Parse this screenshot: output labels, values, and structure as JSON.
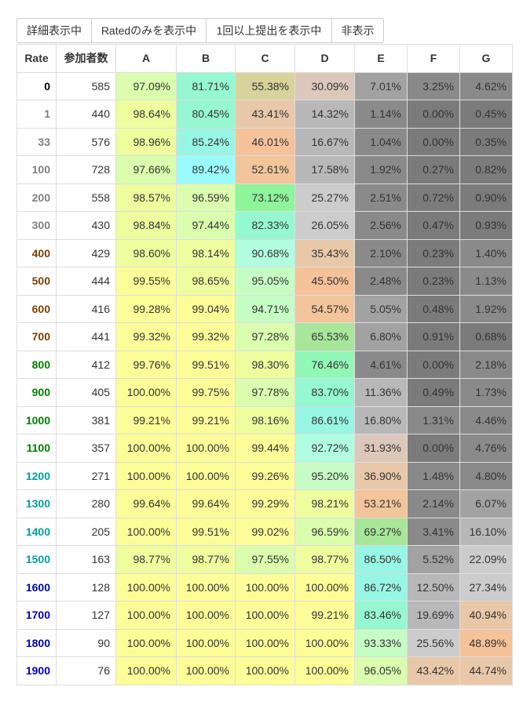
{
  "toolbar": {
    "buttons": [
      "詳細表示中",
      "Ratedのみを表示中",
      "1回以上提出を表示中",
      "非表示"
    ]
  },
  "table": {
    "headers": [
      "Rate",
      "参加者数",
      "A",
      "B",
      "C",
      "D",
      "E",
      "F",
      "G"
    ],
    "rows": [
      {
        "rate": "0",
        "count": "585",
        "values": [
          "97.09%",
          "81.71%",
          "55.38%",
          "30.09%",
          "7.01%",
          "3.25%",
          "4.62%"
        ]
      },
      {
        "rate": "1",
        "count": "440",
        "values": [
          "98.64%",
          "80.45%",
          "43.41%",
          "14.32%",
          "1.14%",
          "0.00%",
          "0.45%"
        ]
      },
      {
        "rate": "33",
        "count": "576",
        "values": [
          "98.96%",
          "85.24%",
          "46.01%",
          "16.67%",
          "1.04%",
          "0.00%",
          "0.35%"
        ]
      },
      {
        "rate": "100",
        "count": "728",
        "values": [
          "97.66%",
          "89.42%",
          "52.61%",
          "17.58%",
          "1.92%",
          "0.27%",
          "0.82%"
        ]
      },
      {
        "rate": "200",
        "count": "558",
        "values": [
          "98.57%",
          "96.59%",
          "73.12%",
          "25.27%",
          "2.51%",
          "0.72%",
          "0.90%"
        ]
      },
      {
        "rate": "300",
        "count": "430",
        "values": [
          "98.84%",
          "97.44%",
          "82.33%",
          "26.05%",
          "2.56%",
          "0.47%",
          "0.93%"
        ]
      },
      {
        "rate": "400",
        "count": "429",
        "values": [
          "98.60%",
          "98.14%",
          "90.68%",
          "35.43%",
          "2.10%",
          "0.23%",
          "1.40%"
        ]
      },
      {
        "rate": "500",
        "count": "444",
        "values": [
          "99.55%",
          "98.65%",
          "95.05%",
          "45.50%",
          "2.48%",
          "0.23%",
          "1.13%"
        ]
      },
      {
        "rate": "600",
        "count": "416",
        "values": [
          "99.28%",
          "99.04%",
          "94.71%",
          "54.57%",
          "5.05%",
          "0.48%",
          "1.92%"
        ]
      },
      {
        "rate": "700",
        "count": "441",
        "values": [
          "99.32%",
          "99.32%",
          "97.28%",
          "65.53%",
          "6.80%",
          "0.91%",
          "0.68%"
        ]
      },
      {
        "rate": "800",
        "count": "412",
        "values": [
          "99.76%",
          "99.51%",
          "98.30%",
          "76.46%",
          "4.61%",
          "0.00%",
          "2.18%"
        ]
      },
      {
        "rate": "900",
        "count": "405",
        "values": [
          "100.00%",
          "99.75%",
          "97.78%",
          "83.70%",
          "11.36%",
          "0.49%",
          "1.73%"
        ]
      },
      {
        "rate": "1000",
        "count": "381",
        "values": [
          "99.21%",
          "99.21%",
          "98.16%",
          "86.61%",
          "16.80%",
          "1.31%",
          "4.46%"
        ]
      },
      {
        "rate": "1100",
        "count": "357",
        "values": [
          "100.00%",
          "100.00%",
          "99.44%",
          "92.72%",
          "31.93%",
          "0.00%",
          "4.76%"
        ]
      },
      {
        "rate": "1200",
        "count": "271",
        "values": [
          "100.00%",
          "100.00%",
          "99.26%",
          "95.20%",
          "36.90%",
          "1.48%",
          "4.80%"
        ]
      },
      {
        "rate": "1300",
        "count": "280",
        "values": [
          "99.64%",
          "99.64%",
          "99.29%",
          "98.21%",
          "53.21%",
          "2.14%",
          "6.07%"
        ]
      },
      {
        "rate": "1400",
        "count": "205",
        "values": [
          "100.00%",
          "99.51%",
          "99.02%",
          "96.59%",
          "69.27%",
          "3.41%",
          "16.10%"
        ]
      },
      {
        "rate": "1500",
        "count": "163",
        "values": [
          "98.77%",
          "98.77%",
          "97.55%",
          "98.77%",
          "86.50%",
          "5.52%",
          "22.09%"
        ]
      },
      {
        "rate": "1600",
        "count": "128",
        "values": [
          "100.00%",
          "100.00%",
          "100.00%",
          "100.00%",
          "86.72%",
          "12.50%",
          "27.34%"
        ]
      },
      {
        "rate": "1700",
        "count": "127",
        "values": [
          "100.00%",
          "100.00%",
          "100.00%",
          "99.21%",
          "83.46%",
          "19.69%",
          "40.94%"
        ]
      },
      {
        "rate": "1800",
        "count": "90",
        "values": [
          "100.00%",
          "100.00%",
          "100.00%",
          "100.00%",
          "93.33%",
          "25.56%",
          "48.89%"
        ]
      },
      {
        "rate": "1900",
        "count": "76",
        "values": [
          "100.00%",
          "100.00%",
          "100.00%",
          "100.00%",
          "96.05%",
          "43.42%",
          "44.74%"
        ]
      }
    ]
  },
  "rate_colors": {
    "0": "#000000",
    "1": "#808080",
    "400": "#804000",
    "800": "#008000",
    "1200": "#00a0a0",
    "1600": "#0000c0"
  },
  "heat_colors": [
    {
      "min": 0,
      "color": "#7b7b7b"
    },
    {
      "min": 1,
      "color": "#8a8a8a"
    },
    {
      "min": 5,
      "color": "#a2a2a2"
    },
    {
      "min": 10,
      "color": "#b8b8b8"
    },
    {
      "min": 20,
      "color": "#cccccc"
    },
    {
      "min": 30,
      "color": "#dcc8bb"
    },
    {
      "min": 35,
      "color": "#e8c8a8"
    },
    {
      "min": 45,
      "color": "#f5c29a"
    },
    {
      "min": 50,
      "color": "#f2c59a"
    },
    {
      "min": 55,
      "color": "#d8d39a"
    },
    {
      "min": 65,
      "color": "#a8e69a"
    },
    {
      "min": 70,
      "color": "#8ef59a"
    },
    {
      "min": 75,
      "color": "#92f8b8"
    },
    {
      "min": 80,
      "color": "#96f8d0"
    },
    {
      "min": 85,
      "color": "#98f6e4"
    },
    {
      "min": 88,
      "color": "#9afcfc"
    },
    {
      "min": 90,
      "color": "#b0fde0"
    },
    {
      "min": 93,
      "color": "#c6fdc4"
    },
    {
      "min": 96,
      "color": "#dafdae"
    },
    {
      "min": 98,
      "color": "#eefd9e"
    },
    {
      "min": 99,
      "color": "#fcfd98"
    }
  ]
}
